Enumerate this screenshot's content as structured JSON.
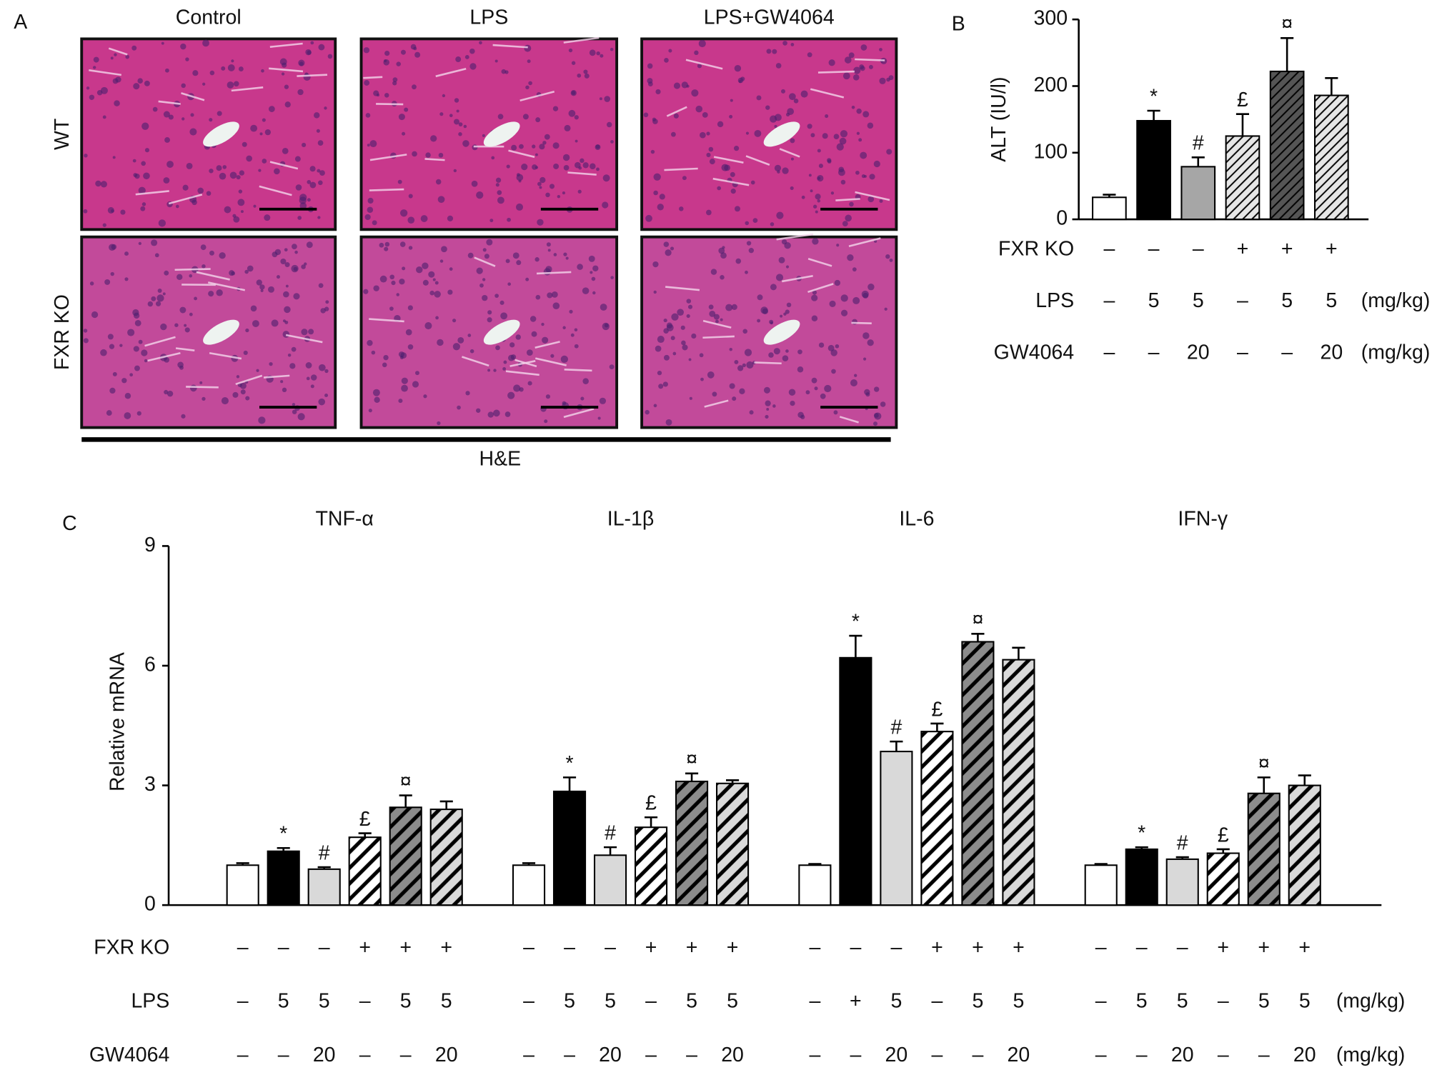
{
  "panel_labels": [
    "A",
    "B",
    "C"
  ],
  "histology": {
    "columns": [
      "Control",
      "LPS",
      "LPS+GW4064"
    ],
    "rows": [
      "WT",
      "FXR KO"
    ],
    "stain": "H&E"
  },
  "chart_data": [
    {
      "type": "bar",
      "ylabel": "ALT (IU/l)",
      "ylim": [
        0,
        300
      ],
      "yticks": [
        0,
        100,
        200,
        300
      ],
      "values": [
        33,
        148,
        79,
        125,
        222,
        186
      ],
      "errors": [
        4,
        15,
        14,
        33,
        50,
        26
      ],
      "colors": [
        "#ffffff",
        "#000000",
        "#a6a6a6",
        "#e6e6e6",
        "#555555",
        "#e6e6e6"
      ],
      "hatch": [
        false,
        false,
        false,
        true,
        true,
        true
      ],
      "annotations": [
        null,
        "*",
        "#",
        "£",
        "¤",
        null
      ],
      "treatments": [
        {
          "name": "FXR KO",
          "values": [
            "–",
            "–",
            "–",
            "+",
            "+",
            "+"
          ]
        },
        {
          "name": "LPS",
          "values": [
            "–",
            "5",
            "5",
            "–",
            "5",
            "5"
          ],
          "unit": "(mg/kg)"
        },
        {
          "name": "GW4064",
          "values": [
            "–",
            "–",
            "20",
            "–",
            "–",
            "20"
          ],
          "unit": "(mg/kg)"
        }
      ]
    },
    {
      "type": "grouped_bar",
      "ylabel": "Relative mRNA",
      "ylim": [
        0,
        9
      ],
      "yticks": [
        0,
        3,
        6,
        9
      ],
      "categories": [
        "TNF-α",
        "IL-1β",
        "IL-6",
        "IFN-γ"
      ],
      "series": [
        {
          "color": "#ffffff",
          "hatch": false,
          "values": [
            1.0,
            1.0,
            1.0,
            1.0
          ],
          "errors": [
            0.05,
            0.05,
            0.03,
            0.03
          ]
        },
        {
          "color": "#000000",
          "hatch": false,
          "annotation": "*",
          "values": [
            1.35,
            2.85,
            6.2,
            1.4
          ],
          "errors": [
            0.08,
            0.35,
            0.55,
            0.05
          ]
        },
        {
          "color": "#d9d9d9",
          "hatch": false,
          "annotation": "#",
          "values": [
            0.9,
            1.25,
            3.85,
            1.15
          ],
          "errors": [
            0.05,
            0.2,
            0.25,
            0.05
          ]
        },
        {
          "color": "#ffffff",
          "hatch": true,
          "annotation": "£",
          "values": [
            1.7,
            1.95,
            4.35,
            1.3
          ],
          "errors": [
            0.1,
            0.25,
            0.2,
            0.1
          ]
        },
        {
          "color": "#8c8c8c",
          "hatch": true,
          "annotation": "¤",
          "values": [
            2.45,
            3.1,
            6.6,
            2.8
          ],
          "errors": [
            0.3,
            0.2,
            0.2,
            0.4
          ]
        },
        {
          "color": "#d9d9d9",
          "hatch": true,
          "values": [
            2.4,
            3.05,
            6.15,
            3.0
          ],
          "errors": [
            0.2,
            0.08,
            0.3,
            0.25
          ]
        }
      ],
      "treatments": [
        {
          "name": "FXR KO",
          "groups": [
            [
              "–",
              "–",
              "–",
              "+",
              "+",
              "+"
            ],
            [
              "–",
              "–",
              "–",
              "+",
              "+",
              "+"
            ],
            [
              "–",
              "–",
              "–",
              "+",
              "+",
              "+"
            ],
            [
              "–",
              "–",
              "–",
              "+",
              "+",
              "+"
            ]
          ]
        },
        {
          "name": "LPS",
          "unit": "(mg/kg)",
          "groups": [
            [
              "–",
              "5",
              "5",
              "–",
              "5",
              "5"
            ],
            [
              "–",
              "5",
              "5",
              "–",
              "5",
              "5"
            ],
            [
              "–",
              "+",
              "5",
              "–",
              "5",
              "5"
            ],
            [
              "–",
              "5",
              "5",
              "–",
              "5",
              "5"
            ]
          ]
        },
        {
          "name": "GW4064",
          "unit": "(mg/kg)",
          "groups": [
            [
              "–",
              "–",
              "20",
              "–",
              "–",
              "20"
            ],
            [
              "–",
              "–",
              "20",
              "–",
              "–",
              "20"
            ],
            [
              "–",
              "–",
              "20",
              "–",
              "–",
              "20"
            ],
            [
              "–",
              "–",
              "20",
              "–",
              "–",
              "20"
            ]
          ]
        }
      ]
    }
  ]
}
